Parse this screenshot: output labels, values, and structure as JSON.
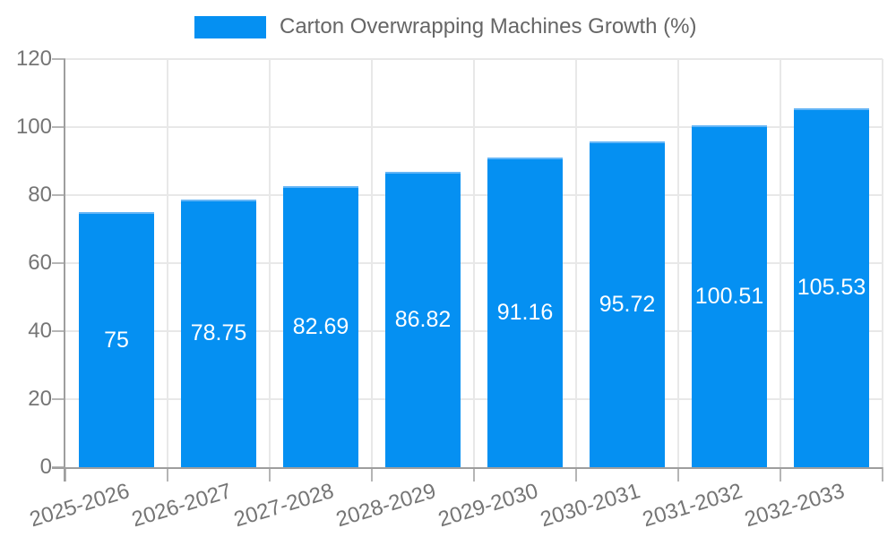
{
  "chart_data": {
    "type": "bar",
    "title": "Carton Overwrapping Machines Growth (%)",
    "xlabel": "",
    "ylabel": "",
    "categories": [
      "2025-2026",
      "2026-2027",
      "2027-2028",
      "2028-2029",
      "2029-2030",
      "2030-2031",
      "2031-2032",
      "2032-2033"
    ],
    "values": [
      75,
      78.75,
      82.69,
      86.82,
      91.16,
      95.72,
      100.51,
      105.53
    ],
    "value_labels": [
      "75",
      "78.75",
      "82.69",
      "86.82",
      "91.16",
      "95.72",
      "100.51",
      "105.53"
    ],
    "ylim": [
      0,
      120
    ],
    "yticks": [
      0,
      20,
      40,
      60,
      80,
      100,
      120
    ],
    "grid": true,
    "legend_position": "top",
    "legend_label": "Carton Overwrapping Machines Growth (%)",
    "colors": {
      "bar_fill": "#0590f2",
      "bar_border": "#64b5f6",
      "bar_label_text": "#ffffff",
      "tick_label_text": "#757575",
      "legend_text": "#666666",
      "gridline": "#e8e8e8",
      "axis_line": "#9e9e9e",
      "tick_mark": "#b5b5b5",
      "background": "#ffffff"
    }
  }
}
